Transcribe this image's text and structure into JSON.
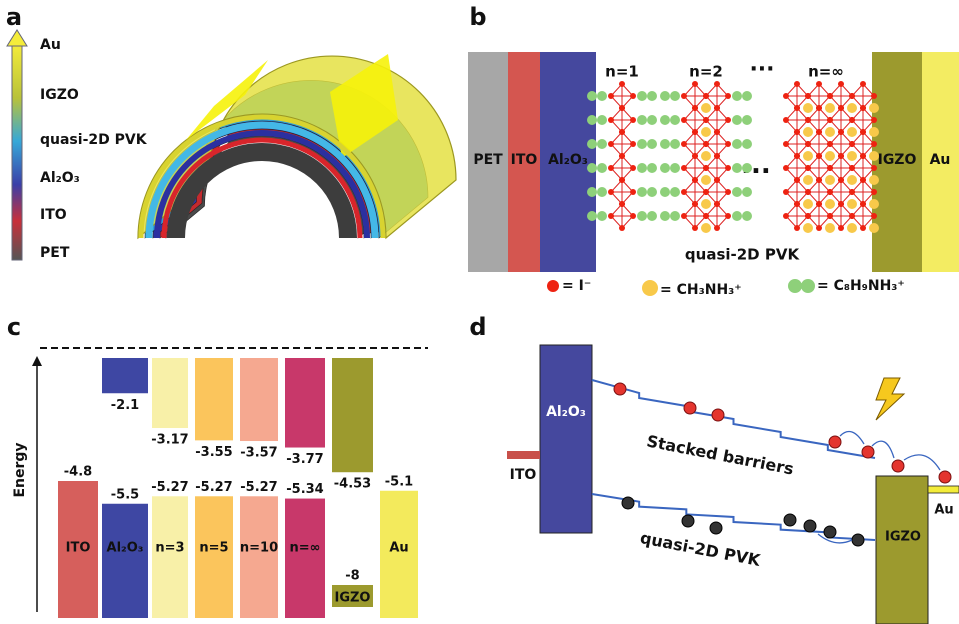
{
  "panel_a": {
    "label": "a",
    "layers": [
      "Au",
      "IGZO",
      "quasi-2D PVK",
      "Al₂O₃",
      "ITO",
      "PET"
    ]
  },
  "panel_b": {
    "label": "b",
    "layers": [
      "PET",
      "ITO",
      "Al₂O₃",
      "IGZO",
      "Au"
    ],
    "phases": [
      "n=1",
      "n=2",
      "n=∞"
    ],
    "ellipsis": "···",
    "caption": "quasi-2D PVK",
    "legend": [
      "= I⁻",
      "= CH₃NH₃⁺",
      "= C₈H₉NH₃⁺"
    ]
  },
  "panel_c": {
    "label": "c",
    "axis_label": "Energy",
    "columns": [
      {
        "name": "ITO",
        "color": "#d65f5c",
        "lower": -4.8
      },
      {
        "name": "Al₂O₃",
        "color": "#3e47a3",
        "upper": -2.1,
        "lower": -5.5
      },
      {
        "name": "n=3",
        "color": "#f8f0a8",
        "upper": -3.17,
        "lower": -5.27
      },
      {
        "name": "n=5",
        "color": "#fbc55c",
        "upper": -3.55,
        "lower": -5.27
      },
      {
        "name": "n=10",
        "color": "#f5a890",
        "upper": -3.57,
        "lower": -5.27
      },
      {
        "name": "n=∞",
        "color": "#c8386a",
        "upper": -3.77,
        "lower": -5.34
      },
      {
        "name": "IGZO",
        "color": "#9c9a2e",
        "upper": -4.53,
        "lower": -8
      },
      {
        "name": "Au",
        "color": "#f3ea5c",
        "lower": -5.1
      }
    ]
  },
  "panel_d": {
    "label": "d",
    "labels": [
      "Al₂O₃",
      "ITO",
      "Stacked barriers",
      "quasi-2D PVK",
      "IGZO",
      "Au"
    ]
  }
}
